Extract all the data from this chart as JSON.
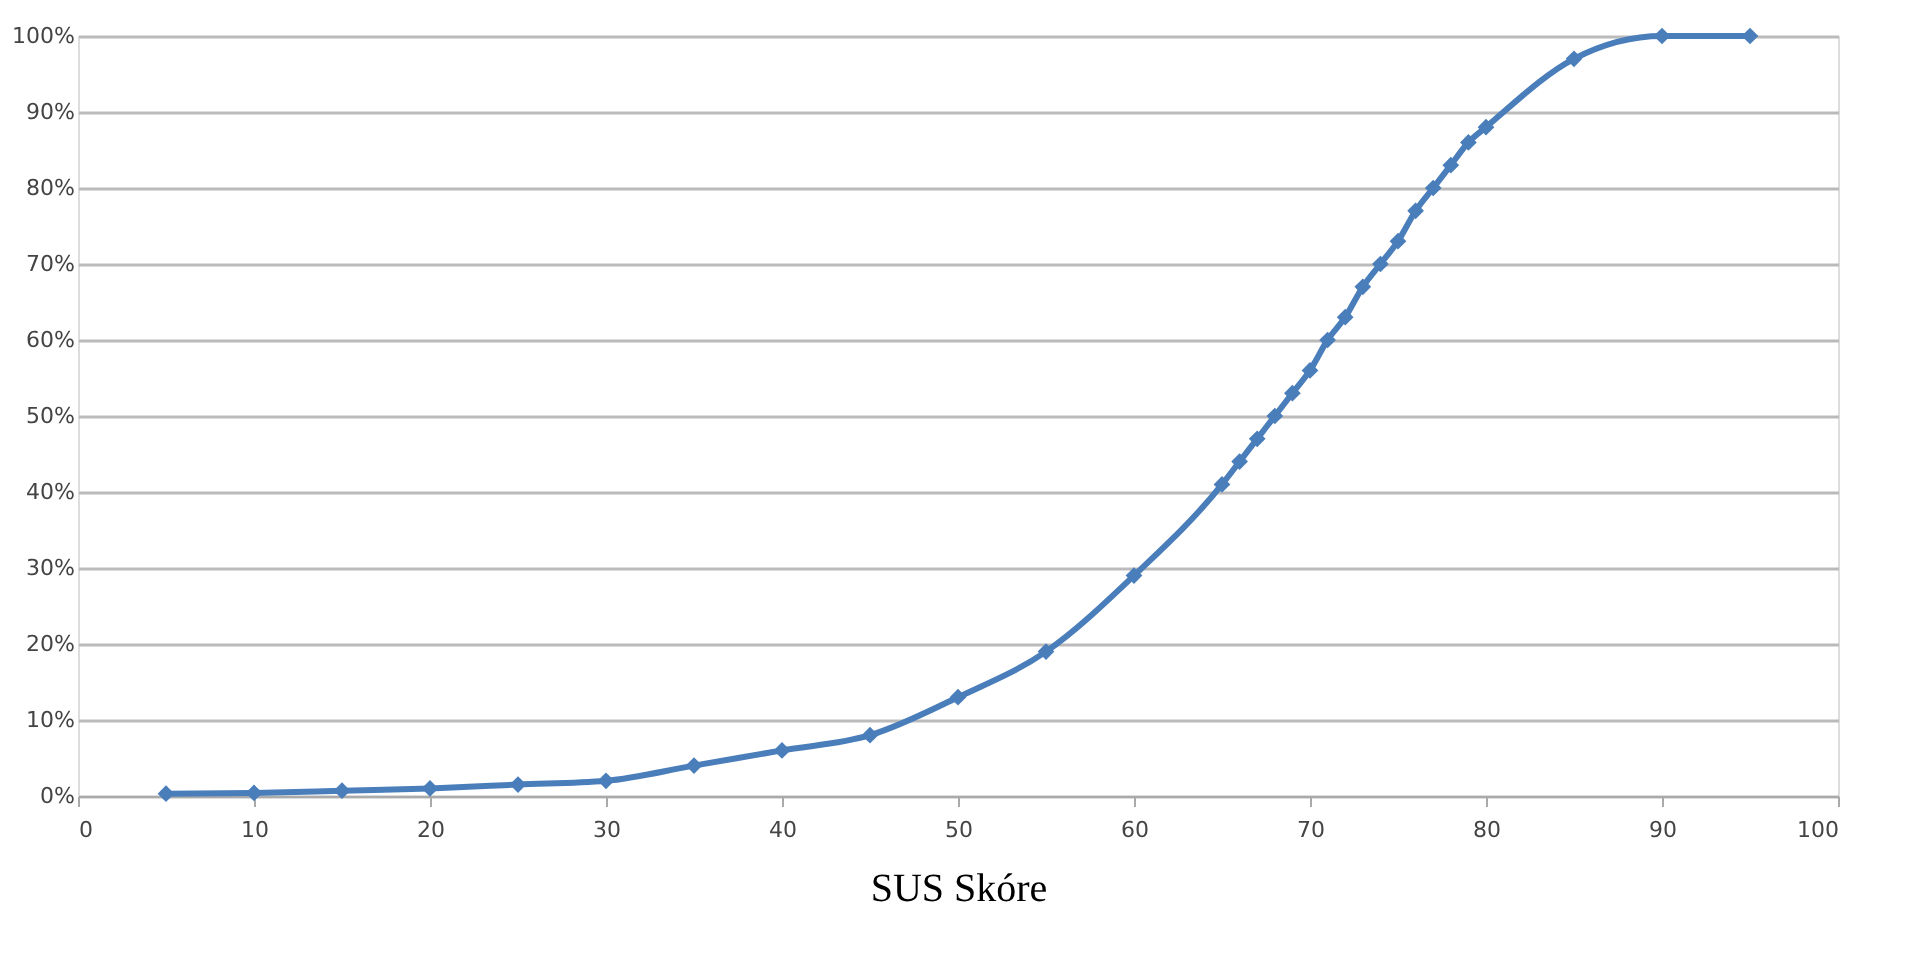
{
  "chart_data": {
    "type": "line",
    "xlabel": "SUS Skóre",
    "x": [
      5,
      10,
      15,
      20,
      25,
      30,
      35,
      40,
      45,
      50,
      55,
      60,
      65,
      66,
      67,
      68,
      69,
      70,
      71,
      72,
      73,
      74,
      75,
      76,
      77,
      78,
      79,
      80,
      85,
      90,
      95
    ],
    "series": [
      {
        "color": "#4a7ebb",
        "values": [
          0.3,
          0.4,
          0.7,
          1,
          1.5,
          2,
          4,
          6,
          8,
          13,
          19,
          29,
          41,
          44,
          47,
          50,
          53,
          56,
          60,
          63,
          67,
          70,
          73,
          77,
          80,
          83,
          86,
          88,
          97,
          100,
          100
        ]
      }
    ],
    "xlim": [
      0,
      100
    ],
    "xticks": [
      0,
      10,
      20,
      30,
      40,
      50,
      60,
      70,
      80,
      90,
      100
    ],
    "ylim": [
      0,
      100
    ],
    "yticks": [
      {
        "value": 0,
        "label": "0%"
      },
      {
        "value": 10,
        "label": "10%"
      },
      {
        "value": 20,
        "label": "20%"
      },
      {
        "value": 30,
        "label": "30%"
      },
      {
        "value": 40,
        "label": "40%"
      },
      {
        "value": 50,
        "label": "50%"
      },
      {
        "value": 60,
        "label": "60%"
      },
      {
        "value": 70,
        "label": "70%"
      },
      {
        "value": 80,
        "label": "80%"
      },
      {
        "value": 90,
        "label": "90%"
      },
      {
        "value": 100,
        "label": "100%"
      }
    ],
    "grid": "y",
    "marker": "diamond",
    "line_style": "solid"
  }
}
